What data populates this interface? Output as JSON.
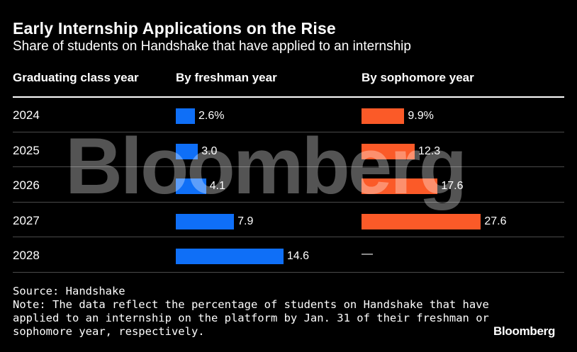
{
  "title": "Early Internship Applications on the Rise",
  "subtitle": "Share of students on Handshake that have applied to an internship",
  "columns": {
    "year": "Graduating class year",
    "freshman": "By freshman year",
    "sophomore": "By sophomore year"
  },
  "chart_data": {
    "type": "table",
    "title": "Early Internship Applications on the Rise",
    "subtitle": "Share of students on Handshake that have applied to an internship",
    "rows": [
      {
        "year": "2024",
        "freshman": 2.6,
        "freshman_label": "2.6%",
        "sophomore": 9.9,
        "sophomore_label": "9.9%"
      },
      {
        "year": "2025",
        "freshman": 3.0,
        "freshman_label": "3.0",
        "sophomore": 12.3,
        "sophomore_label": "12.3"
      },
      {
        "year": "2026",
        "freshman": 4.1,
        "freshman_label": "4.1",
        "sophomore": 17.6,
        "sophomore_label": "17.6"
      },
      {
        "year": "2027",
        "freshman": 7.9,
        "freshman_label": "7.9",
        "sophomore": 27.6,
        "sophomore_label": "27.6"
      },
      {
        "year": "2028",
        "freshman": 14.6,
        "freshman_label": "14.6",
        "sophomore": null,
        "sophomore_label": "—"
      }
    ],
    "colors": {
      "freshman": "#0f6ff7",
      "sophomore": "#fb5a28"
    }
  },
  "watermark": "Bloomberg",
  "source": "Source: Handshake",
  "note": [
    "Note: The data reflect the percentage of students on Handshake that have",
    "applied to an internship on the platform by Jan. 31 of their freshman or",
    "sophomore year, respectively."
  ],
  "brand": "Bloomberg"
}
